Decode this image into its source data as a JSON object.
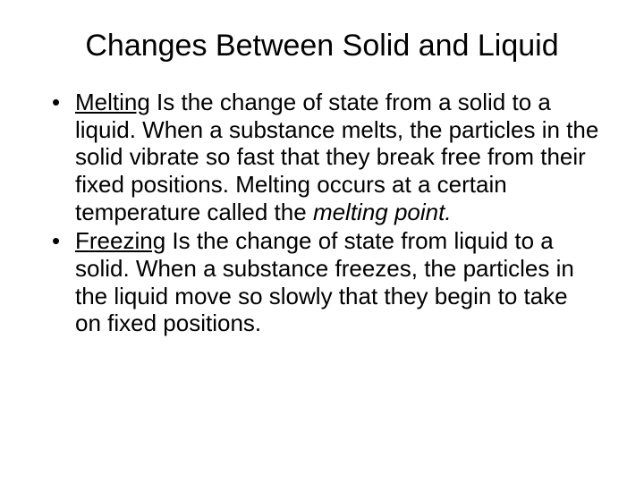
{
  "title_fontsize": 34,
  "body_fontsize": 26,
  "text_color": "#000000",
  "background_color": "#ffffff",
  "font_family": "Arial",
  "title": "Changes Between Solid and Liquid",
  "bullets": [
    {
      "term": "Melting",
      "text_before_ital": " Is the change of state from a solid to a liquid.  When a substance melts, the particles in the solid vibrate so fast that they break free from their fixed positions.  Melting occurs at a certain temperature called the ",
      "ital": "melting point.",
      "text_after_ital": ""
    },
    {
      "term": "Freezing",
      "text_before_ital": " Is the change of state from liquid to a solid.  When a substance freezes, the particles in the liquid move so slowly that they begin to take on fixed positions.",
      "ital": "",
      "text_after_ital": ""
    }
  ]
}
